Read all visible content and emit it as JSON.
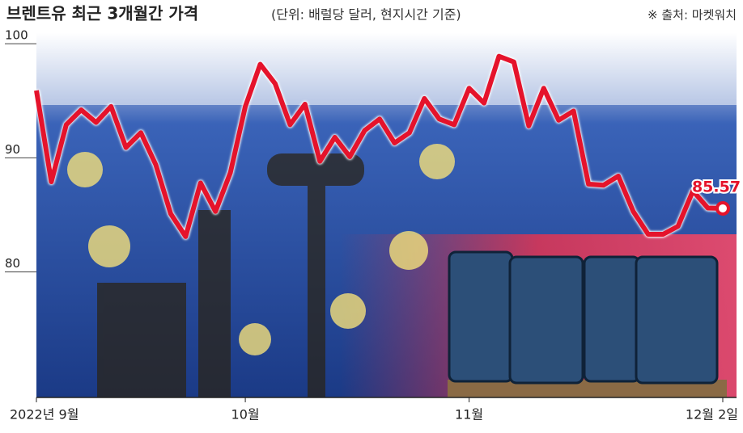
{
  "chart_data": {
    "type": "line",
    "title": "브렌트유 최근 3개월간 가격",
    "subtitle": "(단위: 배럴당 달러, 현지시간 기준)",
    "source": "※ 출처: 마켓워치",
    "categories": [
      "2022년 9월",
      null,
      null,
      null,
      null,
      null,
      null,
      null,
      null,
      null,
      null,
      null,
      null,
      null,
      "10월",
      null,
      null,
      null,
      null,
      null,
      null,
      null,
      null,
      null,
      null,
      null,
      null,
      null,
      null,
      "11월",
      null,
      null,
      null,
      null,
      null,
      null,
      null,
      null,
      null,
      null,
      null,
      null,
      null,
      null,
      null,
      null,
      "12월 2일"
    ],
    "values": [
      95.9,
      87.9,
      92.9,
      94.2,
      93.1,
      94.5,
      90.9,
      92.2,
      89.4,
      85.1,
      83.1,
      87.8,
      85.3,
      88.7,
      94.5,
      98.2,
      96.5,
      92.9,
      94.7,
      89.7,
      91.8,
      90.1,
      92.4,
      93.4,
      91.3,
      92.2,
      95.2,
      93.4,
      92.9,
      96.1,
      94.8,
      98.9,
      98.4,
      92.8,
      96.1,
      93.3,
      94.1,
      87.7,
      87.6,
      88.4,
      85.3,
      83.3,
      83.3,
      84.0,
      87.1,
      85.6,
      85.57
    ],
    "color": "#e5132b",
    "ylim": [
      69,
      101
    ],
    "yticks": [
      80,
      90,
      100
    ],
    "grid": false
  }
}
